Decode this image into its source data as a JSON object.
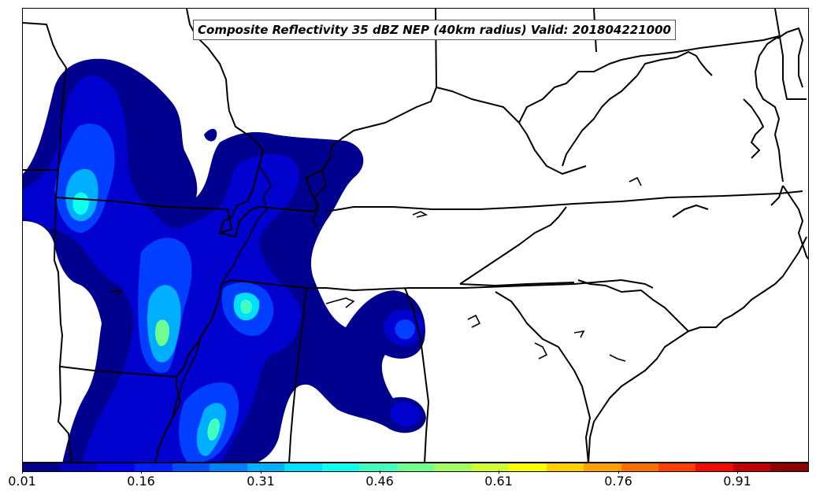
{
  "map": {
    "title": "Composite Reflectivity 35 dBZ NEP (40km radius) Valid: 201804221000"
  },
  "colorbar": {
    "ticks": [
      "0.01",
      "0.16",
      "0.31",
      "0.46",
      "0.61",
      "0.76",
      "0.91"
    ],
    "min": 0.01,
    "max": 1.0,
    "colors": [
      "#00008f",
      "#0000bf",
      "#0000ef",
      "#001fff",
      "#004fff",
      "#007fff",
      "#00afff",
      "#00dfff",
      "#10ffef",
      "#40ffbf",
      "#70ff8f",
      "#a0ff5f",
      "#cfff30",
      "#ffff00",
      "#ffcf00",
      "#ff9f00",
      "#ff6f00",
      "#ff3f00",
      "#ef0f00",
      "#bf0000",
      "#8f0000"
    ]
  }
}
